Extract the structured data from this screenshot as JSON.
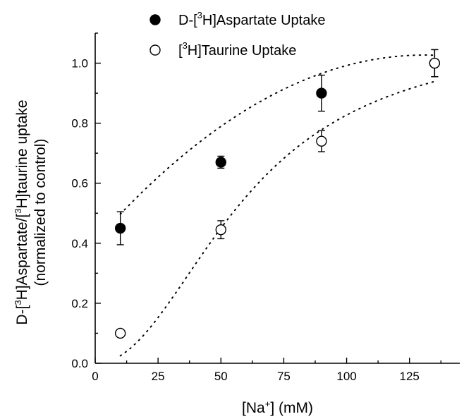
{
  "chart_data": {
    "type": "scatter",
    "xlabel": {
      "pre": "[Na",
      "sup": "+",
      "post": "] (mM)"
    },
    "ylabel": {
      "line1": [
        {
          "t": "D-[",
          "s": false
        },
        {
          "t": "3",
          "s": true
        },
        {
          "t": "H]Aspartate/[",
          "s": false
        },
        {
          "t": "3",
          "s": true
        },
        {
          "t": "H]taurine uptake",
          "s": false
        }
      ],
      "line2": "(normalized to control)"
    },
    "xlim": [
      0,
      145
    ],
    "ylim": [
      0.0,
      1.1
    ],
    "xticks": [
      0,
      25,
      50,
      75,
      100,
      125
    ],
    "xtick_labels": [
      "0",
      "25",
      "50",
      "75",
      "100",
      "125"
    ],
    "yticks": [
      0.0,
      0.2,
      0.4,
      0.6,
      0.8,
      1.0
    ],
    "ytick_labels": [
      "0.0",
      "0.2",
      "0.4",
      "0.6",
      "0.8",
      "1.0"
    ],
    "grid": false,
    "legend_position": "top-left",
    "series": [
      {
        "legend": {
          "pre": "D-[",
          "sup": "3",
          "post": "H]Aspartate Uptake"
        },
        "marker": "filled-circle",
        "x": [
          10,
          50,
          90,
          135
        ],
        "y": [
          0.45,
          0.67,
          0.9,
          1.0
        ],
        "yerr": [
          0.055,
          0.02,
          0.06,
          0.045
        ],
        "fit": {
          "x0": 10,
          "x1": 135,
          "a": 0.406,
          "b": 0.00947,
          "c": -3.61e-05
        }
      },
      {
        "legend": {
          "pre": "[",
          "sup": "3",
          "post": "H]Taurine Uptake"
        },
        "marker": "open-circle",
        "x": [
          10,
          50,
          90,
          135
        ],
        "y": [
          0.1,
          0.445,
          0.74,
          1.0
        ],
        "yerr": [
          0.01,
          0.03,
          0.035,
          0.045
        ],
        "fit": {
          "x0": 10,
          "x1": 135,
          "logistic": true,
          "top": 1.11,
          "x50": 60,
          "slope": 2.1
        }
      }
    ]
  }
}
